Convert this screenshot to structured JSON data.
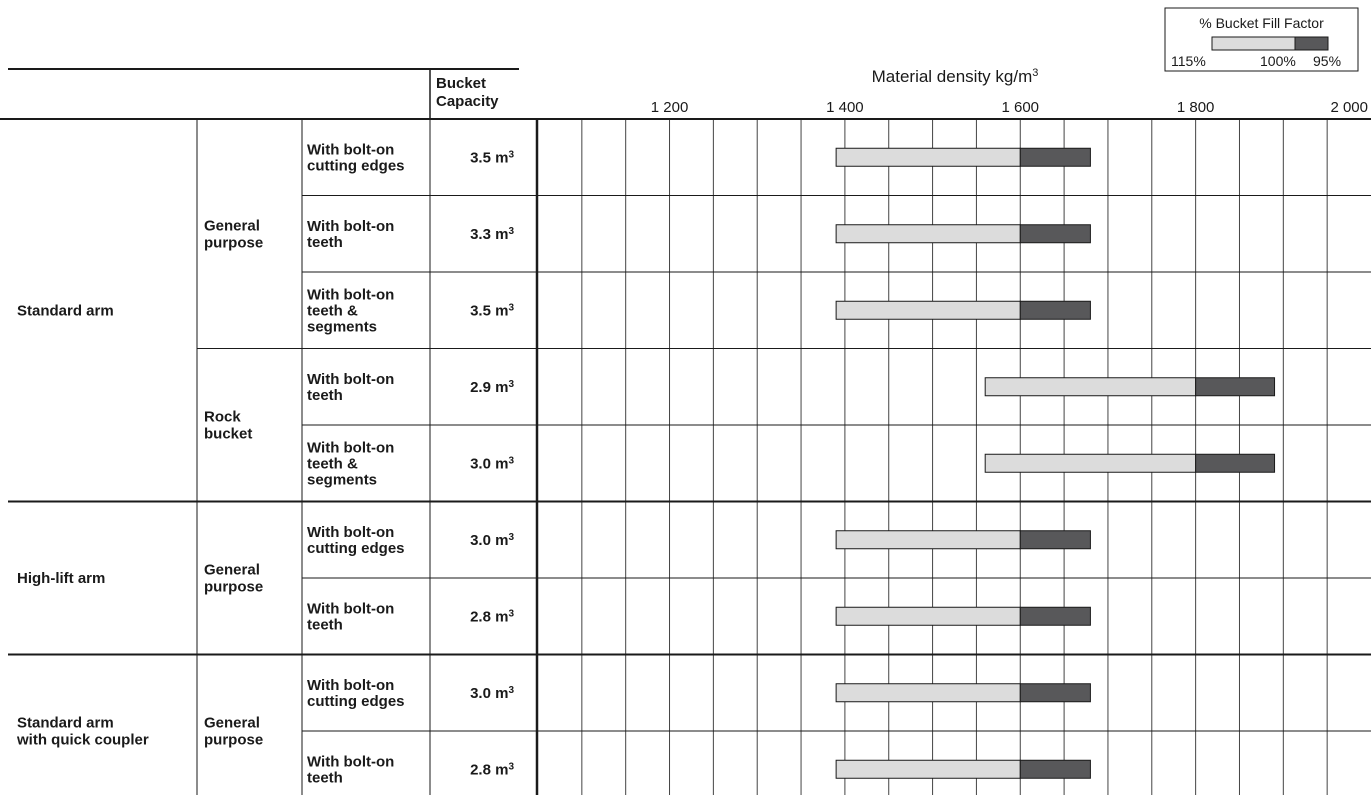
{
  "legend": {
    "title": "% Bucket Fill Factor",
    "labels": [
      "115%",
      "100%",
      "95%"
    ]
  },
  "header": {
    "capacity_label": [
      "Bucket",
      "Capacity"
    ],
    "density_label": "Material density kg/m",
    "density_unit_sup": "3"
  },
  "groups": [
    {
      "label": [
        "Standard arm"
      ]
    },
    {
      "label": [
        "High-lift arm"
      ]
    },
    {
      "label": [
        "Standard arm",
        "with quick coupler"
      ]
    }
  ],
  "subgroups": [
    {
      "label": [
        "General",
        "purpose"
      ]
    },
    {
      "label": [
        "Rock",
        "bucket"
      ]
    },
    {
      "label": [
        "General",
        "purpose"
      ]
    },
    {
      "label": [
        "General",
        "purpose"
      ]
    }
  ],
  "chart_data": {
    "type": "bar",
    "xlabel": "Material density kg/m³",
    "xlim": [
      1050,
      2000
    ],
    "x_ticks": [
      1200,
      1400,
      1600,
      1800,
      2000
    ],
    "x_tick_labels": [
      "1 200",
      "1 400",
      "1 600",
      "1 800",
      "2 000"
    ],
    "legend": {
      "title": "% Bucket Fill Factor",
      "labels": [
        "115%",
        "100%",
        "95%"
      ],
      "placement": "top-right"
    },
    "series": [
      {
        "name": "115%",
        "color": "#dcdcdc"
      },
      {
        "name": "100% 95%",
        "color": "#58585a"
      }
    ],
    "rows": [
      {
        "group": "Standard arm",
        "subgroup": "General purpose",
        "config": [
          "With bolt-on",
          "cutting edges"
        ],
        "capacity": "3.5 m",
        "density_115": 1390,
        "density_100": 1600,
        "density_95": 1680
      },
      {
        "group": "Standard arm",
        "subgroup": "General purpose",
        "config": [
          "With bolt-on",
          "teeth"
        ],
        "capacity": "3.3 m",
        "density_115": 1390,
        "density_100": 1600,
        "density_95": 1680
      },
      {
        "group": "Standard arm",
        "subgroup": "General purpose",
        "config": [
          "With bolt-on",
          "teeth &",
          "segments"
        ],
        "capacity": "3.5 m",
        "density_115": 1390,
        "density_100": 1600,
        "density_95": 1680
      },
      {
        "group": "Standard arm",
        "subgroup": "Rock bucket",
        "config": [
          "With bolt-on",
          "teeth"
        ],
        "capacity": "2.9 m",
        "density_115": 1560,
        "density_100": 1800,
        "density_95": 1890
      },
      {
        "group": "Standard arm",
        "subgroup": "Rock bucket",
        "config": [
          "With bolt-on",
          "teeth &",
          "segments"
        ],
        "capacity": "3.0 m",
        "density_115": 1560,
        "density_100": 1800,
        "density_95": 1890
      },
      {
        "group": "High-lift arm",
        "subgroup": "General purpose",
        "config": [
          "With bolt-on",
          "cutting edges"
        ],
        "capacity": "3.0 m",
        "density_115": 1390,
        "density_100": 1600,
        "density_95": 1680
      },
      {
        "group": "High-lift arm",
        "subgroup": "General purpose",
        "config": [
          "With bolt-on",
          "teeth"
        ],
        "capacity": "2.8 m",
        "density_115": 1390,
        "density_100": 1600,
        "density_95": 1680
      },
      {
        "group": "Standard arm with quick coupler",
        "subgroup": "General purpose",
        "config": [
          "With bolt-on",
          "cutting edges"
        ],
        "capacity": "3.0 m",
        "density_115": 1390,
        "density_100": 1600,
        "density_95": 1680
      },
      {
        "group": "Standard arm with quick coupler",
        "subgroup": "General purpose",
        "config": [
          "With bolt-on",
          "teeth"
        ],
        "capacity": "2.8 m",
        "density_115": 1390,
        "density_100": 1600,
        "density_95": 1680
      }
    ],
    "capacity_unit_sup": "3"
  }
}
